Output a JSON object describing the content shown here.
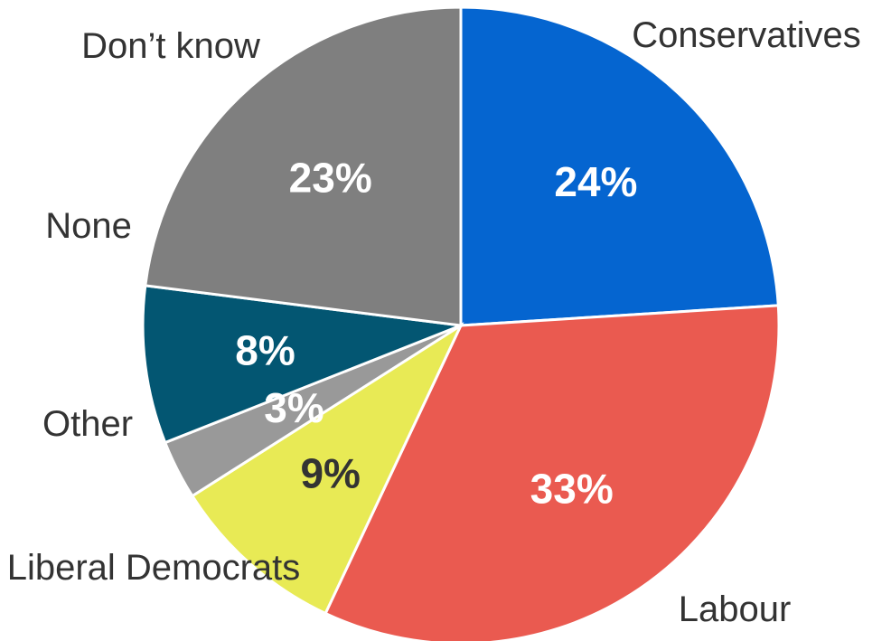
{
  "chart_data": {
    "type": "pie",
    "start_angle_deg": 0,
    "direction": "clockwise",
    "slices": [
      {
        "label": "Conservatives",
        "value": 24,
        "value_label": "24%",
        "color": "#0565d0",
        "text_color": "#ffffff"
      },
      {
        "label": "Labour",
        "value": 33,
        "value_label": "33%",
        "color": "#ea5a50",
        "text_color": "#ffffff"
      },
      {
        "label": "Liberal Democrats",
        "value": 9,
        "value_label": "9%",
        "color": "#e8ea55",
        "text_color": "#333333"
      },
      {
        "label": "Other",
        "value": 3,
        "value_label": "3%",
        "color": "#999999",
        "text_color": "#ffffff"
      },
      {
        "label": "None",
        "value": 8,
        "value_label": "8%",
        "color": "#035672",
        "text_color": "#ffffff"
      },
      {
        "label": "Don’t know",
        "value": 23,
        "value_label": "23%",
        "color": "#7f7f7f",
        "text_color": "#ffffff"
      }
    ]
  }
}
